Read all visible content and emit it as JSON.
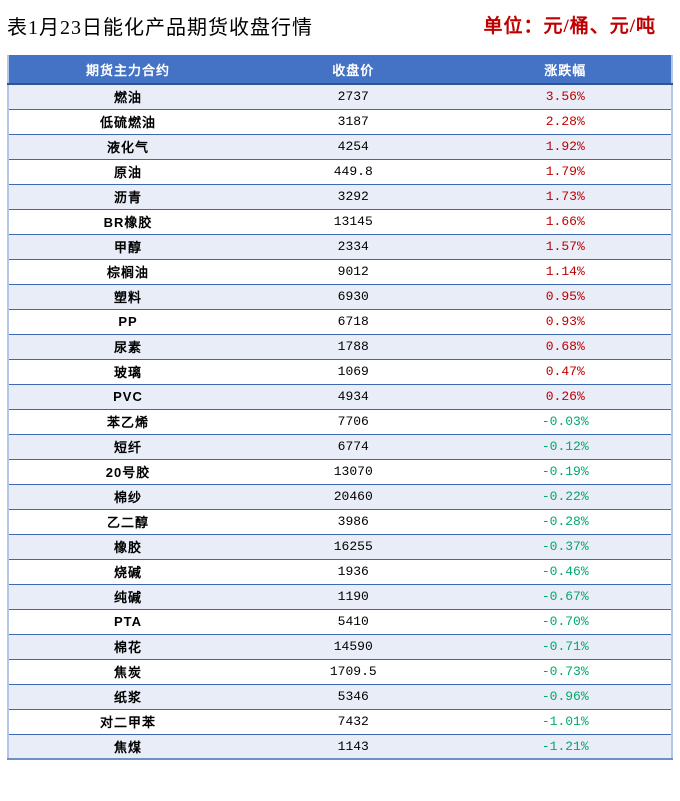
{
  "page": {
    "title": "表1月23日能化产品期货收盘行情",
    "unit_label": "单位：元/桶、元/吨"
  },
  "colors": {
    "header_bg": "#4472C4",
    "header_text": "#FFFFFF",
    "row_alt_bg": "#E9EDF7",
    "row_border": "#3E68B2",
    "outer_border": "#B4C6E7",
    "positive": "#C00000",
    "negative": "#00A86B",
    "unit_text": "#C00000",
    "title_text": "#000000"
  },
  "chart_data": {
    "type": "table",
    "title": "表1月23日能化产品期货收盘行情",
    "unit": "单位：元/桶、元/吨",
    "columns": [
      "期货主力合约",
      "收盘价",
      "涨跌幅"
    ],
    "rows": [
      [
        "燃油",
        "2737",
        "3.56%"
      ],
      [
        "低硫燃油",
        "3187",
        "2.28%"
      ],
      [
        "液化气",
        "4254",
        "1.92%"
      ],
      [
        "原油",
        "449.8",
        "1.79%"
      ],
      [
        "沥青",
        "3292",
        "1.73%"
      ],
      [
        "BR橡胶",
        "13145",
        "1.66%"
      ],
      [
        "甲醇",
        "2334",
        "1.57%"
      ],
      [
        "棕榈油",
        "9012",
        "1.14%"
      ],
      [
        "塑料",
        "6930",
        "0.95%"
      ],
      [
        "PP",
        "6718",
        "0.93%"
      ],
      [
        "尿素",
        "1788",
        "0.68%"
      ],
      [
        "玻璃",
        "1069",
        "0.47%"
      ],
      [
        "PVC",
        "4934",
        "0.26%"
      ],
      [
        "苯乙烯",
        "7706",
        "-0.03%"
      ],
      [
        "短纤",
        "6774",
        "-0.12%"
      ],
      [
        "20号胶",
        "13070",
        "-0.19%"
      ],
      [
        "棉纱",
        "20460",
        "-0.22%"
      ],
      [
        "乙二醇",
        "3986",
        "-0.28%"
      ],
      [
        "橡胶",
        "16255",
        "-0.37%"
      ],
      [
        "烧碱",
        "1936",
        "-0.46%"
      ],
      [
        "纯碱",
        "1190",
        "-0.67%"
      ],
      [
        "PTA",
        "5410",
        "-0.70%"
      ],
      [
        "棉花",
        "14590",
        "-0.71%"
      ],
      [
        "焦炭",
        "1709.5",
        "-0.73%"
      ],
      [
        "纸浆",
        "5346",
        "-0.96%"
      ],
      [
        "对二甲苯",
        "7432",
        "-1.01%"
      ],
      [
        "焦煤",
        "1143",
        "-1.21%"
      ]
    ]
  }
}
